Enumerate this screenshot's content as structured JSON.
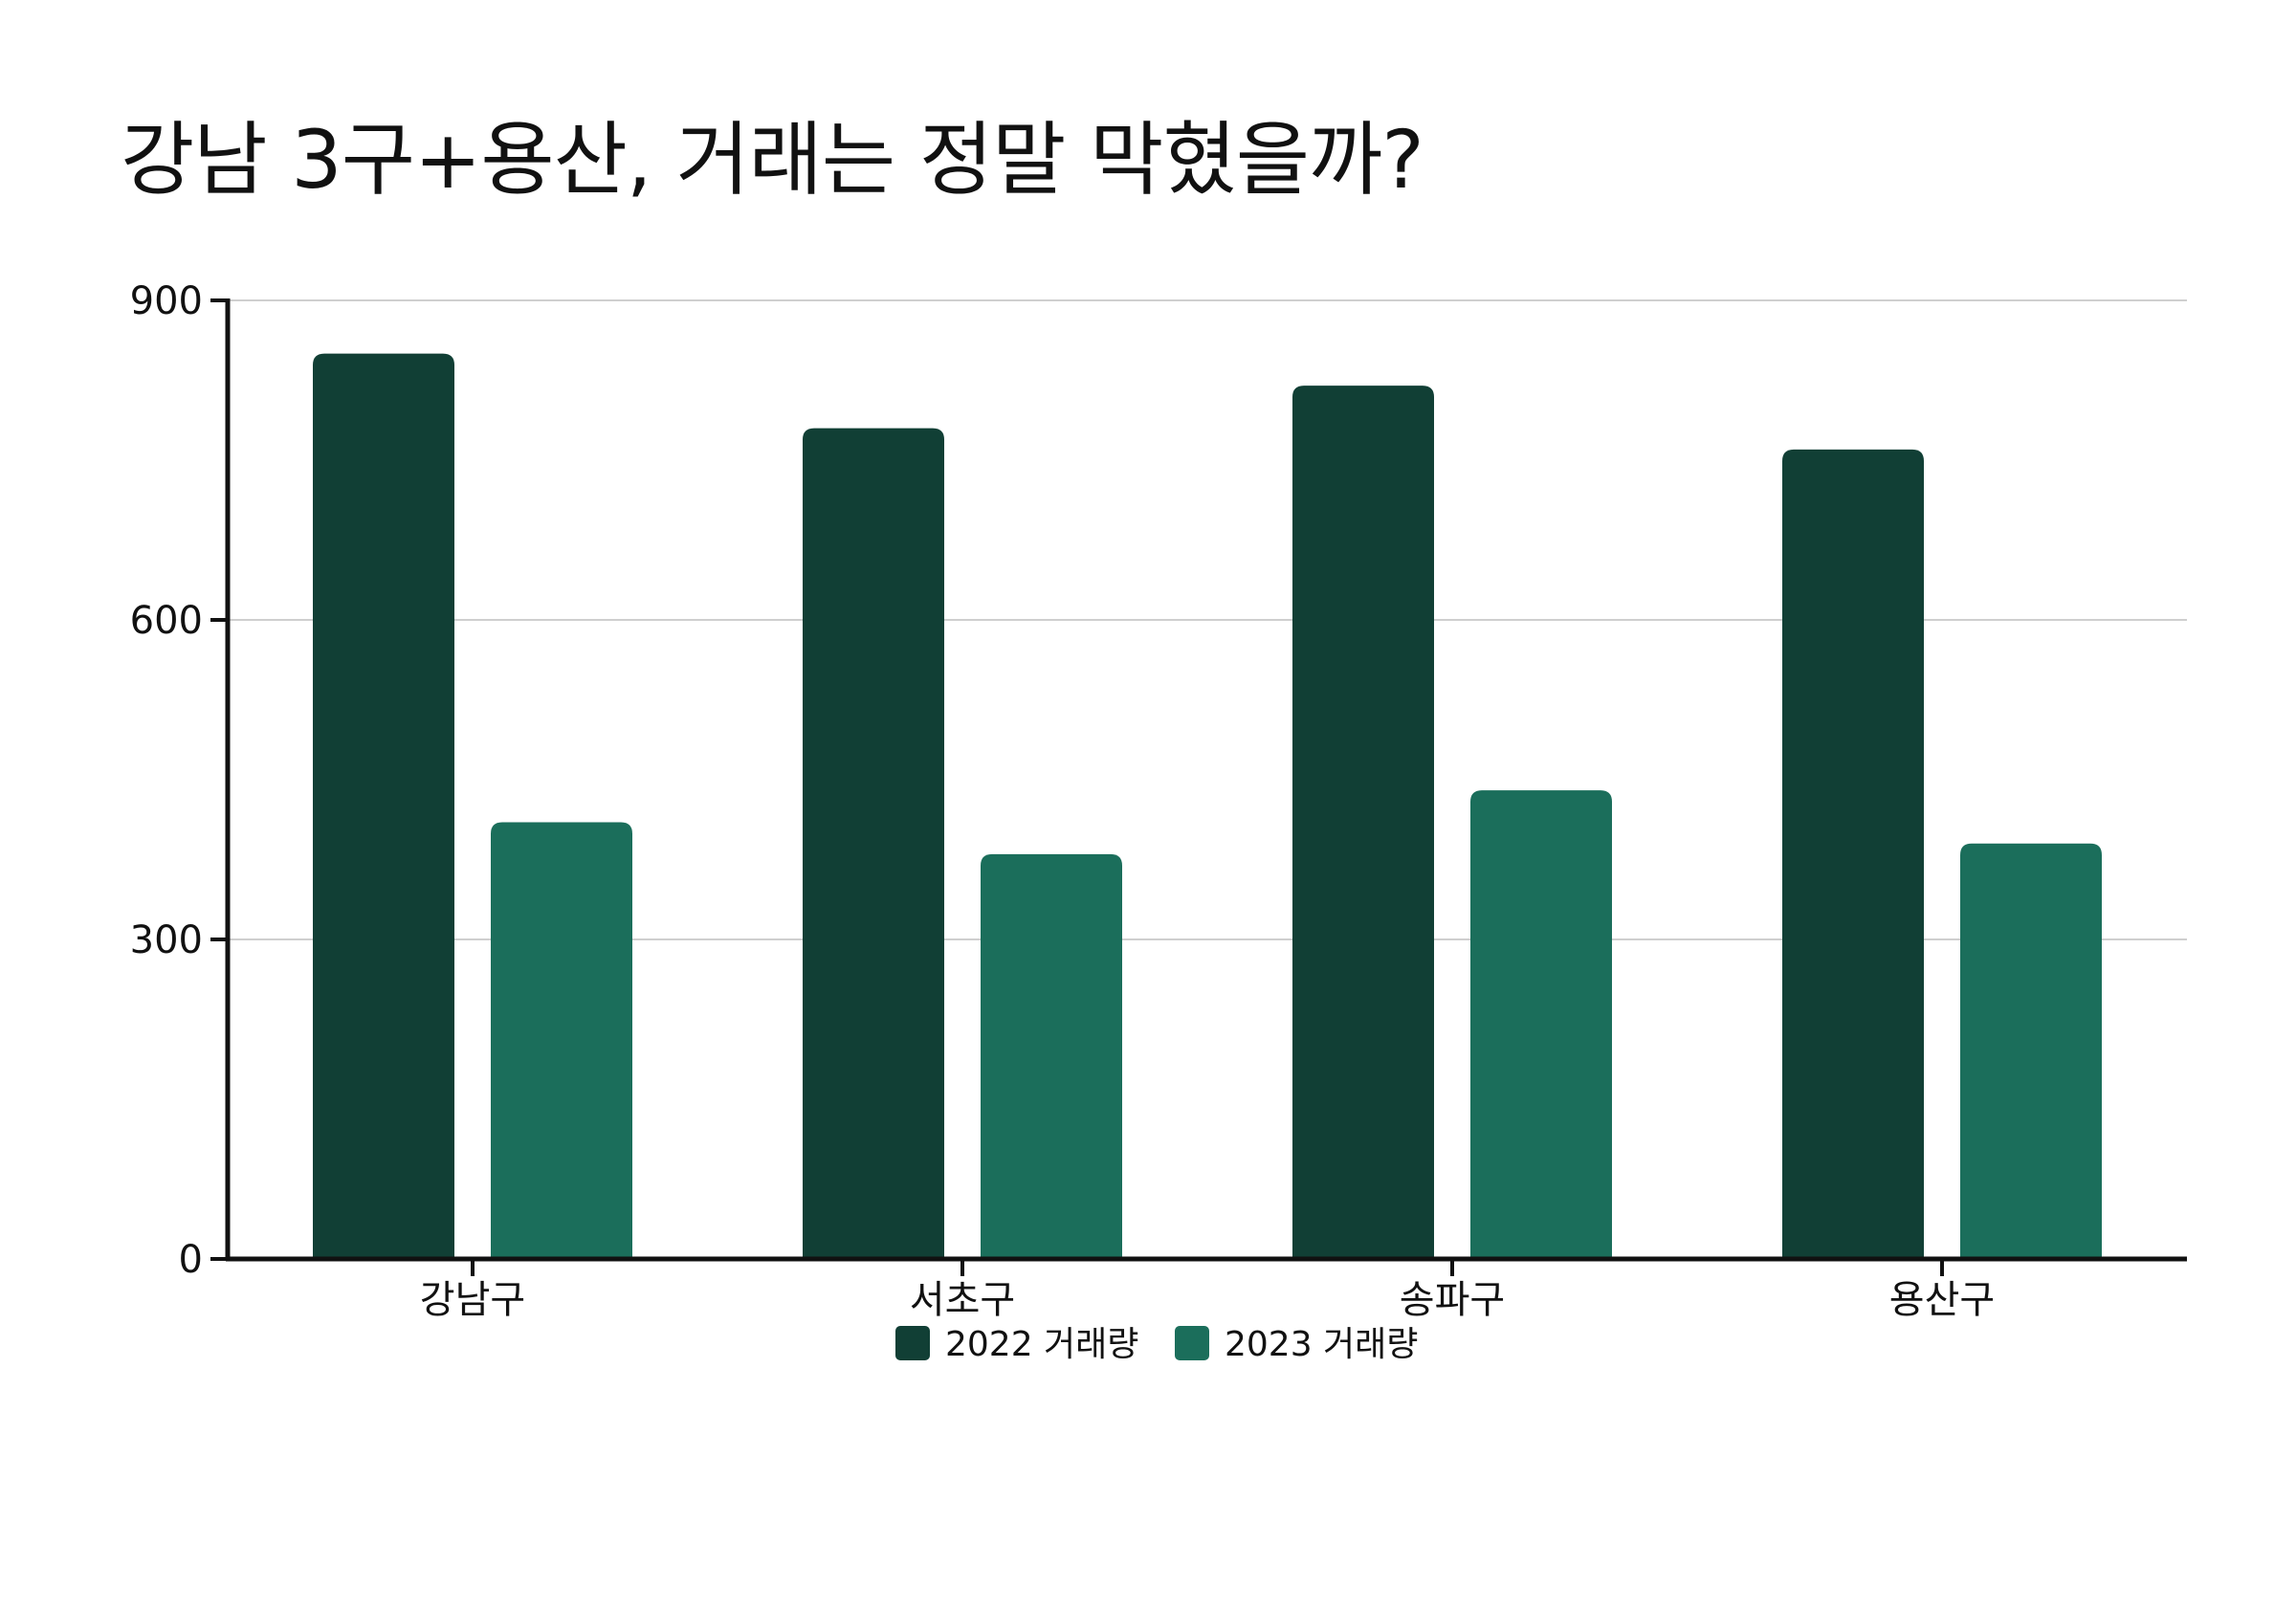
{
  "chart_data": {
    "type": "bar",
    "title": "강남 3구+용산, 거래는 정말 막혔을까?",
    "xlabel": "",
    "ylabel": "",
    "categories": [
      "강남구",
      "서초구",
      "송파구",
      "용산구"
    ],
    "series": [
      {
        "name": "2022 거래량",
        "color": "#113f35",
        "values": [
          850,
          780,
          820,
          760
        ]
      },
      {
        "name": "2023 거래량",
        "color": "#1b6e5b",
        "values": [
          410,
          380,
          440,
          390
        ]
      }
    ],
    "yticks": [
      0,
      300,
      600,
      900
    ],
    "ylim": [
      0,
      900
    ],
    "grid": true,
    "legend_position": "bottom-center"
  }
}
